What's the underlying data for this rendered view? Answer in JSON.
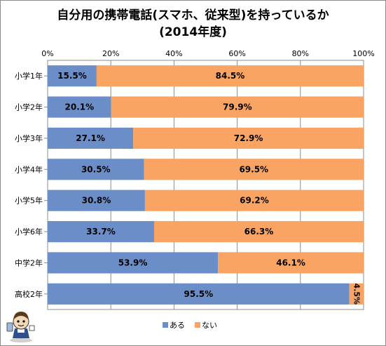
{
  "chart_data": {
    "type": "bar",
    "orientation": "horizontal",
    "stacked": "percent",
    "title": "自分用の携帯電話(スマホ、従来型)を持っているか",
    "subtitle": "(2014年度)",
    "categories": [
      "小学1年",
      "小学2年",
      "小学3年",
      "小学4年",
      "小学5年",
      "小学6年",
      "中学2年",
      "高校2年"
    ],
    "series": [
      {
        "name": "ある",
        "color": "#6b8ec8",
        "values": [
          15.5,
          20.1,
          27.1,
          30.5,
          30.8,
          33.7,
          53.9,
          95.5
        ]
      },
      {
        "name": "ない",
        "color": "#f9a462",
        "values": [
          84.5,
          79.9,
          72.9,
          69.5,
          69.2,
          66.3,
          46.1,
          4.5
        ]
      }
    ],
    "data_labels": [
      [
        "15.5%",
        "20.1%",
        "27.1%",
        "30.5%",
        "30.8%",
        "33.7%",
        "53.9%",
        "95.5%"
      ],
      [
        "84.5%",
        "79.9%",
        "72.9%",
        "69.5%",
        "69.2%",
        "66.3%",
        "46.1%",
        "4.5%"
      ]
    ],
    "x_ticks": [
      "0%",
      "20%",
      "40%",
      "60%",
      "80%",
      "100%"
    ],
    "xlim": [
      0,
      100
    ],
    "grid": true,
    "legend": "bottom"
  }
}
